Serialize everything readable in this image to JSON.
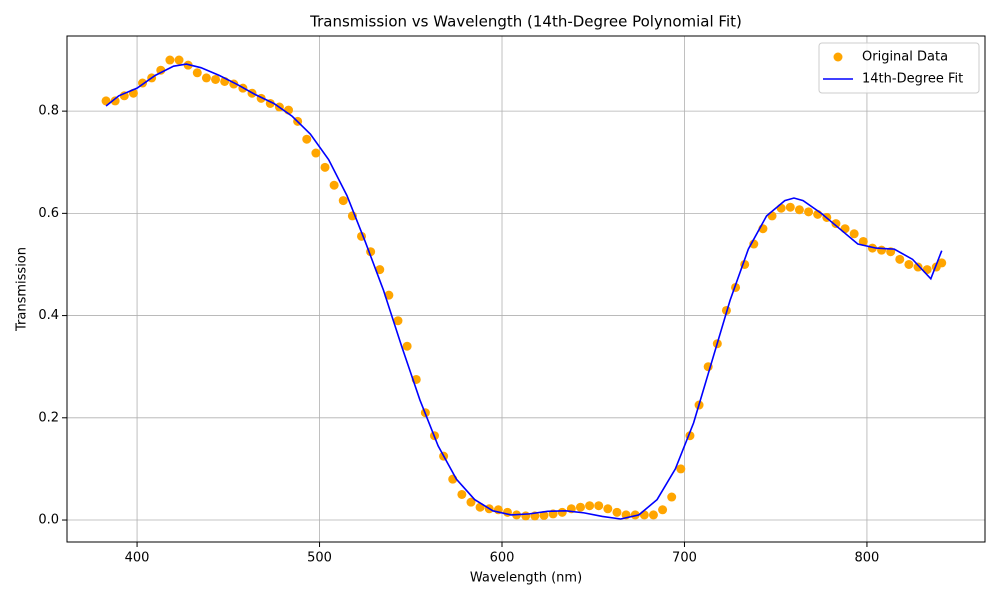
{
  "chart_data": {
    "type": "scatter",
    "title": "Transmission vs Wavelength (14th-Degree Polynomial Fit)",
    "x_label": "Wavelength (nm)",
    "y_label": "Transmission",
    "xlim": [
      361.6,
      864.7
    ],
    "ylim": [
      -0.043,
      0.947
    ],
    "xticks": [
      400,
      500,
      600,
      700,
      800
    ],
    "yticks": [
      {
        "value": 0,
        "label": "0.0"
      },
      0.2,
      0.4,
      0.6,
      0.8
    ],
    "grid": true,
    "legend": "upper right",
    "series": [
      {
        "name": "Original Data",
        "type": "scatter",
        "color": "#ffa500",
        "x": [
          383,
          388,
          393,
          398,
          403,
          408,
          413,
          418,
          423,
          428,
          433,
          438,
          443,
          448,
          453,
          458,
          463,
          468,
          473,
          478,
          483,
          488,
          493,
          498,
          503,
          508,
          513,
          518,
          523,
          528,
          533,
          538,
          543,
          548,
          553,
          558,
          563,
          568,
          573,
          578,
          583,
          588,
          593,
          598,
          603,
          608,
          613,
          618,
          623,
          628,
          633,
          638,
          643,
          648,
          653,
          658,
          663,
          668,
          673,
          678,
          683,
          688,
          693,
          698,
          703,
          708,
          713,
          718,
          723,
          728,
          733,
          738,
          743,
          748,
          753,
          758,
          763,
          768,
          773,
          778,
          783,
          788,
          793,
          798,
          803,
          808,
          813,
          818,
          823,
          828,
          833,
          838,
          841
        ],
        "values": [
          0.82,
          0.82,
          0.83,
          0.835,
          0.855,
          0.865,
          0.88,
          0.9,
          0.9,
          0.89,
          0.875,
          0.865,
          0.862,
          0.858,
          0.853,
          0.845,
          0.835,
          0.825,
          0.815,
          0.808,
          0.802,
          0.78,
          0.745,
          0.718,
          0.69,
          0.655,
          0.625,
          0.595,
          0.555,
          0.525,
          0.49,
          0.44,
          0.39,
          0.34,
          0.275,
          0.21,
          0.165,
          0.125,
          0.08,
          0.05,
          0.035,
          0.025,
          0.022,
          0.02,
          0.015,
          0.01,
          0.008,
          0.008,
          0.009,
          0.012,
          0.015,
          0.022,
          0.025,
          0.028,
          0.028,
          0.022,
          0.015,
          0.01,
          0.01,
          0.01,
          0.01,
          0.02,
          0.045,
          0.1,
          0.165,
          0.225,
          0.3,
          0.345,
          0.41,
          0.455,
          0.5,
          0.54,
          0.57,
          0.595,
          0.61,
          0.612,
          0.607,
          0.603,
          0.598,
          0.592,
          0.58,
          0.57,
          0.56,
          0.545,
          0.532,
          0.528,
          0.525,
          0.51,
          0.5,
          0.495,
          0.49,
          0.495,
          0.503
        ]
      },
      {
        "name": "14th-Degree Fit",
        "type": "line",
        "color": "#0000ff",
        "x": [
          383,
          390,
          400,
          410,
          420,
          427,
          435,
          445,
          455,
          465,
          475,
          485,
          495,
          505,
          515,
          525,
          535,
          545,
          555,
          565,
          575,
          585,
          595,
          605,
          615,
          625,
          635,
          645,
          655,
          665,
          675,
          685,
          695,
          705,
          715,
          725,
          735,
          745,
          755,
          760,
          765,
          775,
          785,
          795,
          805,
          815,
          825,
          835,
          841
        ],
        "values": [
          0.81,
          0.83,
          0.845,
          0.87,
          0.888,
          0.892,
          0.885,
          0.87,
          0.852,
          0.832,
          0.815,
          0.79,
          0.755,
          0.705,
          0.635,
          0.545,
          0.45,
          0.34,
          0.235,
          0.145,
          0.08,
          0.04,
          0.018,
          0.01,
          0.012,
          0.017,
          0.018,
          0.014,
          0.007,
          0.002,
          0.01,
          0.04,
          0.1,
          0.19,
          0.31,
          0.43,
          0.53,
          0.595,
          0.625,
          0.63,
          0.625,
          0.6,
          0.57,
          0.54,
          0.532,
          0.53,
          0.51,
          0.472,
          0.527
        ]
      }
    ]
  }
}
